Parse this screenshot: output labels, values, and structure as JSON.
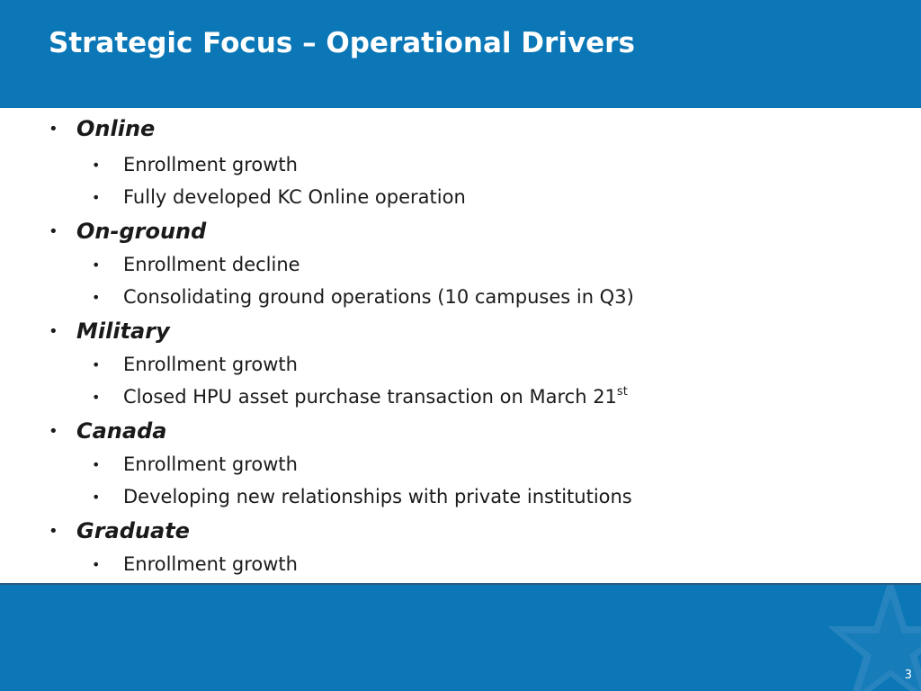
{
  "slide": {
    "title": "Strategic Focus – Operational Drivers",
    "bullet_glyph": "•",
    "sections": [
      {
        "heading": "Online",
        "items": [
          "Enrollment growth",
          "Fully developed KC Online operation"
        ]
      },
      {
        "heading": "On-ground",
        "items": [
          "Enrollment decline",
          "Consolidating ground operations (10 campuses in Q3)"
        ]
      },
      {
        "heading": "Military",
        "items": [
          "Enrollment growth",
          "Closed HPU asset purchase transaction on March 21",
          "st"
        ]
      },
      {
        "heading": "Canada",
        "items": [
          "Enrollment growth",
          "Developing new relationships with private institutions"
        ]
      },
      {
        "heading": "Graduate",
        "items": [
          "Enrollment growth"
        ]
      }
    ],
    "page_number": "3"
  },
  "colors": {
    "header_bg": "#0b77b7",
    "footer_bg": "#0b77b7",
    "title_text": "#ffffff",
    "body_text": "#1a1a1a"
  },
  "icons": {
    "footer_decoration": "star-watermark-icon"
  }
}
